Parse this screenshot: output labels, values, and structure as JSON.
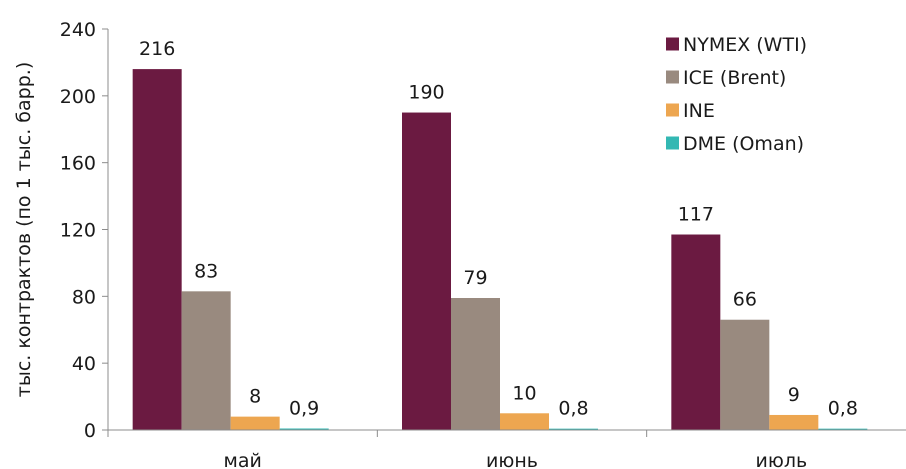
{
  "chart_data": {
    "type": "bar",
    "categories": [
      "май",
      "июнь",
      "июль"
    ],
    "series": [
      {
        "name": "NYMEX (WTI)",
        "color": "#6b1a41",
        "values": [
          216,
          190,
          117
        ],
        "labels": [
          "216",
          "190",
          "117"
        ]
      },
      {
        "name": "ICE (Brent)",
        "color": "#998a7f",
        "values": [
          83,
          79,
          66
        ],
        "labels": [
          "83",
          "79",
          "66"
        ]
      },
      {
        "name": "INE",
        "color": "#eda650",
        "values": [
          8,
          10,
          9
        ],
        "labels": [
          "8",
          "10",
          "9"
        ]
      },
      {
        "name": "DME (Oman)",
        "color": "#33b8b3",
        "values": [
          0.9,
          0.8,
          0.8
        ],
        "labels": [
          "0,9",
          "0,8",
          "0,8"
        ]
      }
    ],
    "ylabel": "тыс. контрактов (по 1 тыс. барр.)",
    "xlabel": "",
    "ylim": [
      0,
      240
    ],
    "yticks": [
      0,
      40,
      80,
      120,
      160,
      200,
      240
    ],
    "grid": false,
    "legend_position": "top-right"
  }
}
